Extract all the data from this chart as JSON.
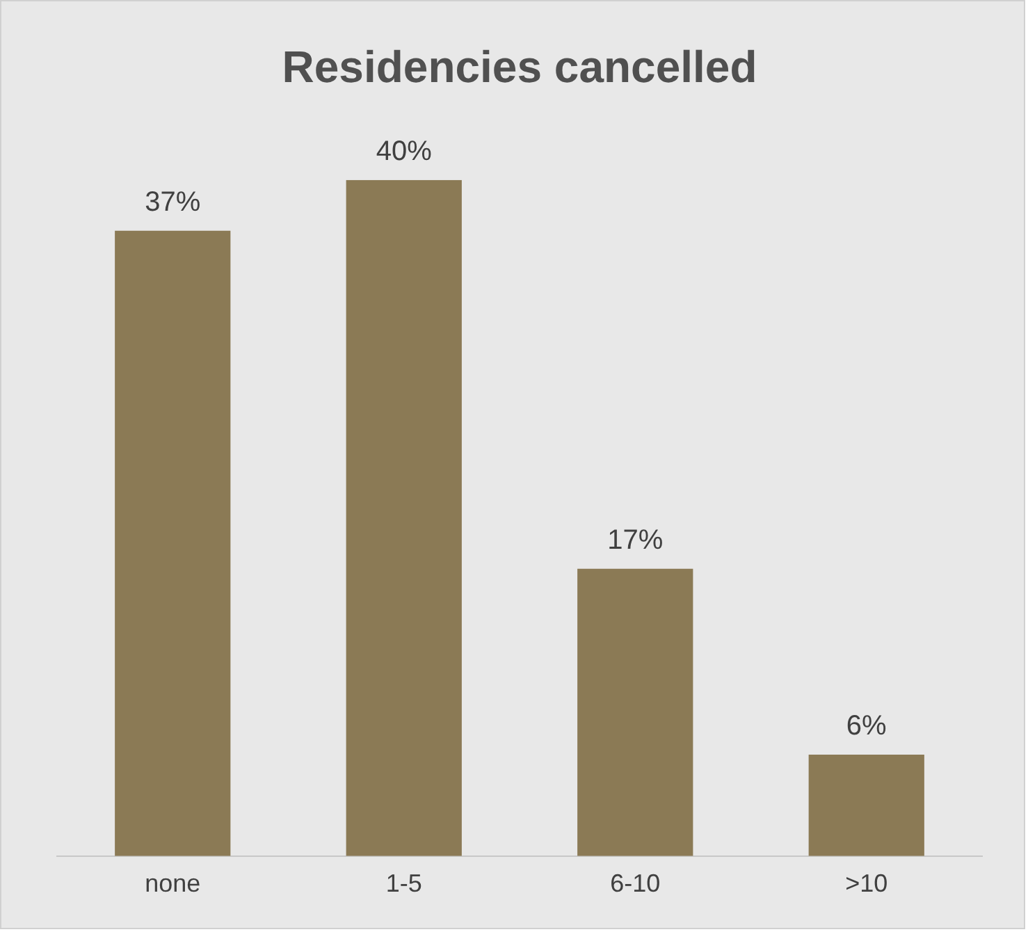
{
  "chart_data": {
    "type": "bar",
    "title": "Residencies cancelled",
    "categories": [
      "none",
      "1-5",
      "6-10",
      ">10"
    ],
    "values": [
      37,
      40,
      17,
      6
    ],
    "value_labels": [
      "37%",
      "40%",
      "17%",
      "6%"
    ],
    "color": "#8b7a55",
    "grid": false,
    "legend": false
  }
}
